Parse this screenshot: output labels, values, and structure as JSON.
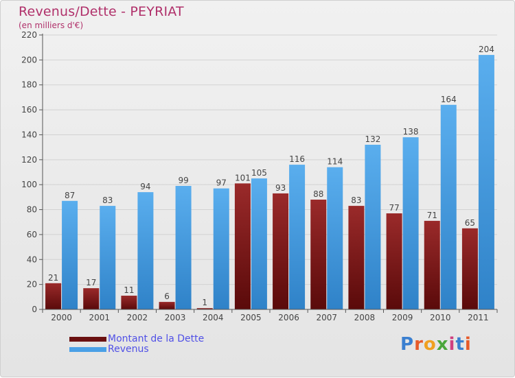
{
  "title": "Revenus/Dette - PEYRIAT",
  "subtitle": "(en milliers d'€)",
  "legend": {
    "dette_label": "Montant de la Dette",
    "revenus_label": "Revenus"
  },
  "brand": {
    "text": "Proxiti",
    "letter_colors": [
      "#3a7fd0",
      "#e65a2a",
      "#f0a020",
      "#4aa63a",
      "#d04080",
      "#3a7fd0",
      "#e65a2a"
    ]
  },
  "colors": {
    "dette": "#7a1414",
    "revenus": "#4aa0e6",
    "axis": "#555555",
    "grid": "#cfcfcf"
  },
  "chart_data": {
    "type": "bar",
    "title": "Revenus/Dette - PEYRIAT",
    "subtitle": "(en milliers d'€)",
    "categories": [
      "2000",
      "2001",
      "2002",
      "2003",
      "2004",
      "2005",
      "2006",
      "2007",
      "2008",
      "2009",
      "2010",
      "2011"
    ],
    "series": [
      {
        "name": "Montant de la Dette",
        "values": [
          21,
          17,
          11,
          6,
          1,
          101,
          93,
          88,
          83,
          77,
          71,
          65
        ]
      },
      {
        "name": "Revenus",
        "values": [
          87,
          83,
          94,
          99,
          97,
          105,
          116,
          114,
          132,
          138,
          164,
          204
        ]
      }
    ],
    "ylim": [
      0,
      220
    ],
    "yticks": [
      0,
      20,
      40,
      60,
      80,
      100,
      120,
      140,
      160,
      180,
      200,
      220
    ],
    "grid": true,
    "legend_position": "bottom-left"
  }
}
